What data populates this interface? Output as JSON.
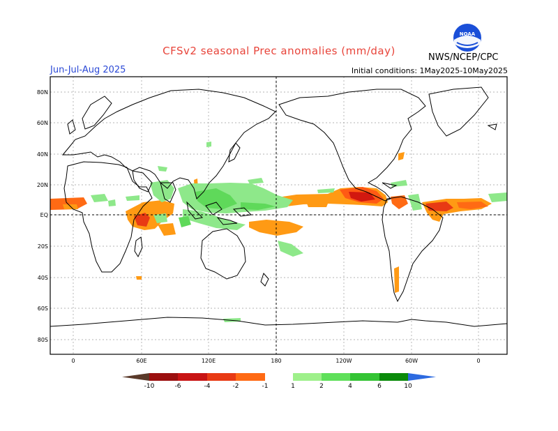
{
  "header": {
    "title": "CFSv2 seasonal Prec anomalies (mm/day)",
    "season": "Jun-Jul-Aug 2025",
    "initial_conditions": "Initial conditions: 1May2025-10May2025",
    "agency": "NWS/NCEP/CPC",
    "logo_text": "NOAA"
  },
  "map": {
    "lat_labels": [
      "80N",
      "60N",
      "40N",
      "20N",
      "EQ",
      "20S",
      "40S",
      "60S",
      "80S"
    ],
    "lon_labels": [
      "0",
      "60E",
      "120E",
      "180",
      "120W",
      "60W",
      "0"
    ]
  },
  "legend": {
    "tick_labels": [
      "-10",
      "-6",
      "-4",
      "-2",
      "-1",
      "1",
      "2",
      "4",
      "6",
      "10"
    ],
    "colors": [
      "#5a3a2a",
      "#9b0f0f",
      "#c81414",
      "#e83a14",
      "#ff6a14",
      "#ff9a14",
      "#ffffff",
      "#9ef08a",
      "#5fe05a",
      "#34c434",
      "#1ea01e",
      "#0a8a0a",
      "#2d6ae0"
    ]
  },
  "colors": {
    "dry_strong": "#d2180f",
    "dry_moderate": "#ff5a14",
    "dry_light": "#ff9a14",
    "wet_light": "#8ee88a",
    "wet_moderate": "#5fd95a",
    "wet_strong": "#32c032"
  }
}
